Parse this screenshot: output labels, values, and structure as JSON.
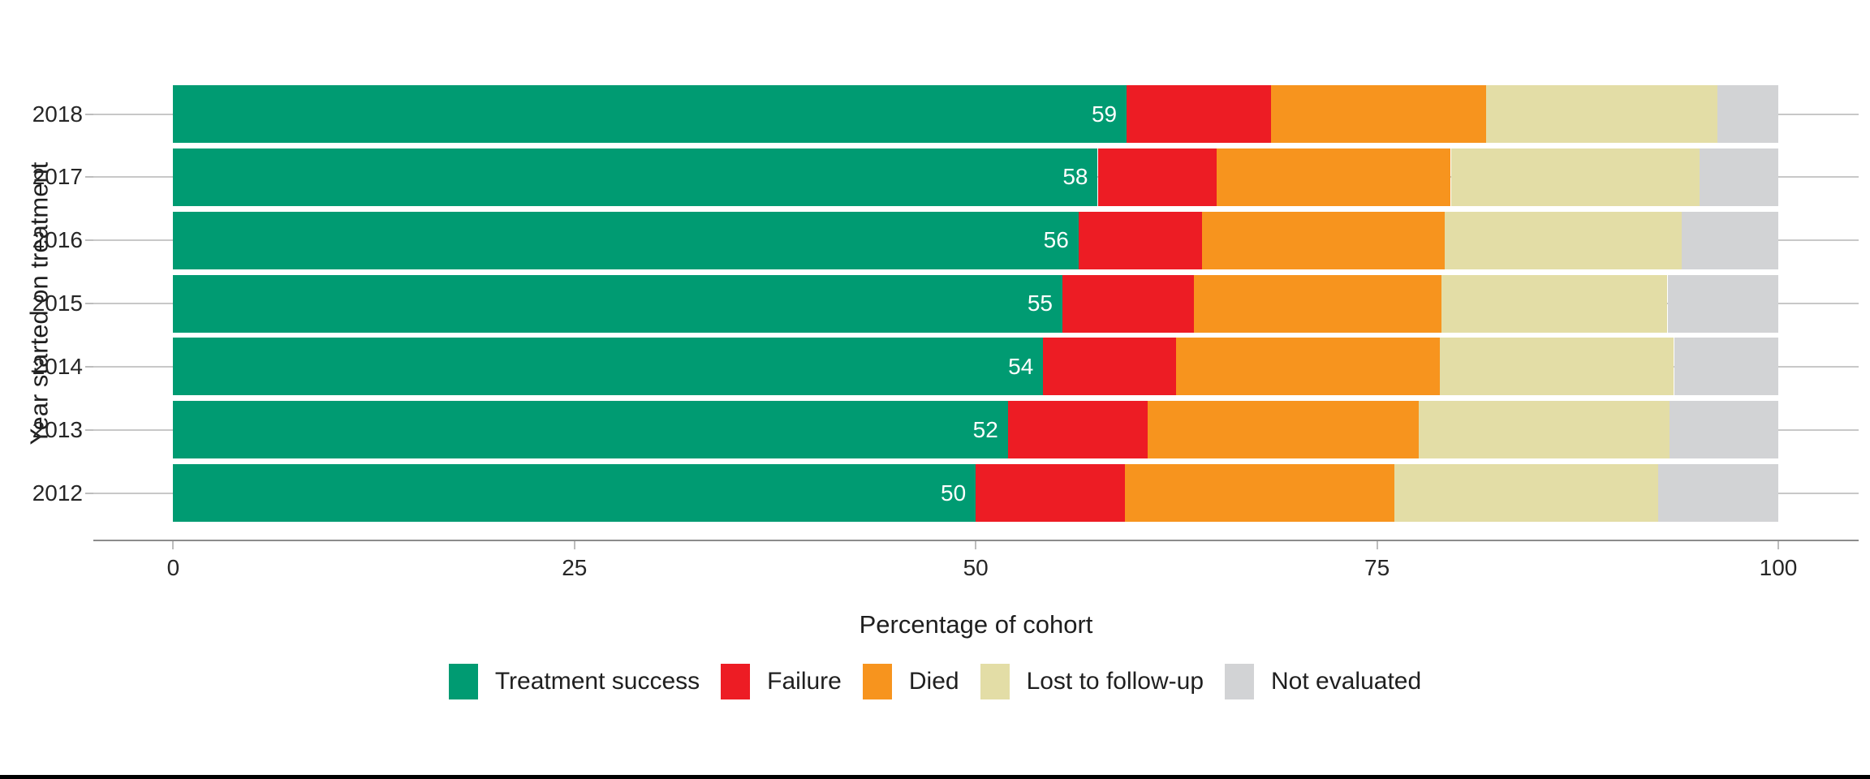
{
  "chart_data": {
    "type": "bar",
    "variant": "horizontal_stacked_percent",
    "title": "",
    "xlabel": "Percentage of cohort",
    "ylabel": "Year started on treatment",
    "categories": [
      "2018",
      "2017",
      "2016",
      "2015",
      "2014",
      "2013",
      "2012"
    ],
    "x_ticks": [
      "0",
      "25",
      "50",
      "75",
      "100"
    ],
    "xlim": [
      0,
      100
    ],
    "grid": "horizontal-only",
    "legend_position": "bottom",
    "series": [
      {
        "name": "Treatment success",
        "color": "#009B72",
        "values": [
          59.4,
          57.6,
          56.4,
          55.4,
          54.2,
          52.0,
          50.0
        ]
      },
      {
        "name": "Failure",
        "color": "#ED1C24",
        "values": [
          9.0,
          7.4,
          7.7,
          8.2,
          8.3,
          8.7,
          9.3
        ]
      },
      {
        "name": "Died",
        "color": "#F7941E",
        "values": [
          13.4,
          14.6,
          15.1,
          15.4,
          16.4,
          16.9,
          16.8
        ]
      },
      {
        "name": "Lost to follow-up",
        "color": "#E3DDA6",
        "values": [
          14.4,
          15.5,
          14.8,
          14.1,
          14.6,
          15.6,
          16.4
        ]
      },
      {
        "name": "Not evaluated",
        "color": "#D2D3D5",
        "values": [
          3.8,
          4.9,
          6.0,
          6.9,
          6.5,
          6.8,
          7.5
        ]
      }
    ],
    "bar_labels": {
      "on_series": "Treatment success",
      "color": "#FFFFFF",
      "values": [
        "59",
        "58",
        "56",
        "55",
        "54",
        "52",
        "50"
      ]
    }
  },
  "colors": {
    "background": "#FFFFFF",
    "gridline": "#C8C8C8",
    "axis_line": "#8C8C8C",
    "tick_mark": "#BDBDBD",
    "tick_label": "#262626",
    "title_text": "#1F1F1F",
    "bottom_strip": "#000000"
  }
}
